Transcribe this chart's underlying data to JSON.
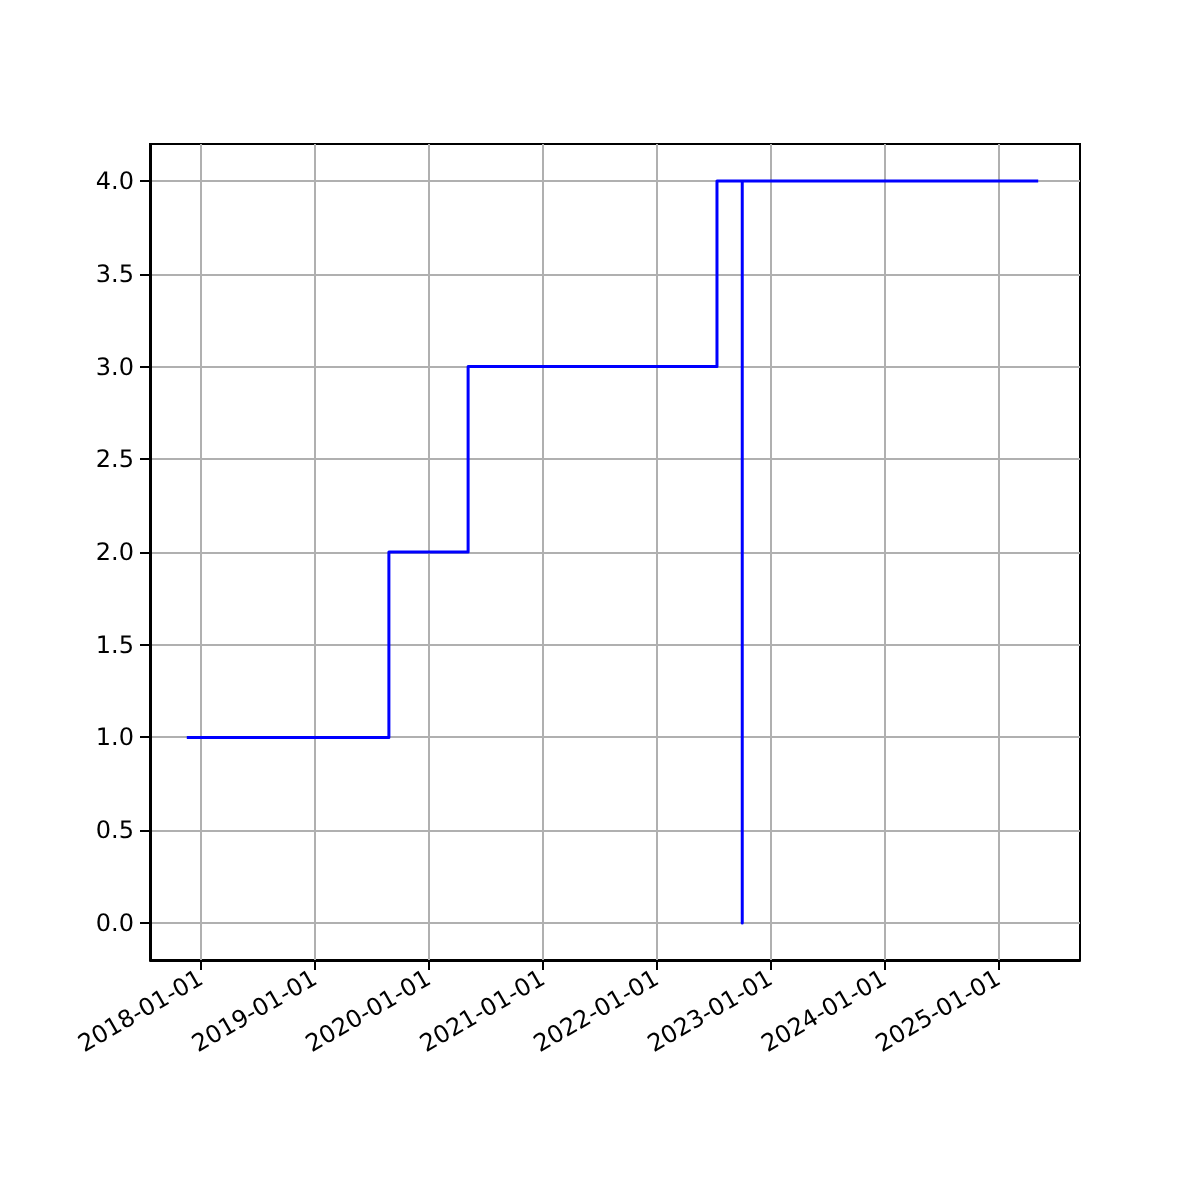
{
  "chart_data": {
    "type": "step",
    "series": [
      {
        "color": "#0000ff",
        "x": [
          "2017-11-17",
          "2019-08-27",
          "2020-05-07",
          "2022-07-14",
          "2022-10-03",
          "2022-10-03",
          "2025-05-09"
        ],
        "values": [
          1,
          2,
          3,
          4,
          0,
          4,
          4
        ]
      }
    ],
    "xlim": [
      "2017-07-22",
      "2025-09-20"
    ],
    "xticks": [
      "2018-01-01",
      "2019-01-01",
      "2020-01-01",
      "2021-01-01",
      "2022-01-01",
      "2023-01-01",
      "2024-01-01",
      "2025-01-01"
    ],
    "ylim": [
      -0.2,
      4.2
    ],
    "yticks": [
      {
        "value": 0,
        "label": "0.0"
      },
      {
        "value": 0.5,
        "label": "0.5"
      },
      {
        "value": 1,
        "label": "1.0"
      },
      {
        "value": 1.5,
        "label": "1.5"
      },
      {
        "value": 2,
        "label": "2.0"
      },
      {
        "value": 2.5,
        "label": "2.5"
      },
      {
        "value": 3,
        "label": "3.0"
      },
      {
        "value": 3.5,
        "label": "3.5"
      },
      {
        "value": 4,
        "label": "4.0"
      }
    ],
    "grid": true,
    "marker": "none",
    "line_style": "solid"
  }
}
